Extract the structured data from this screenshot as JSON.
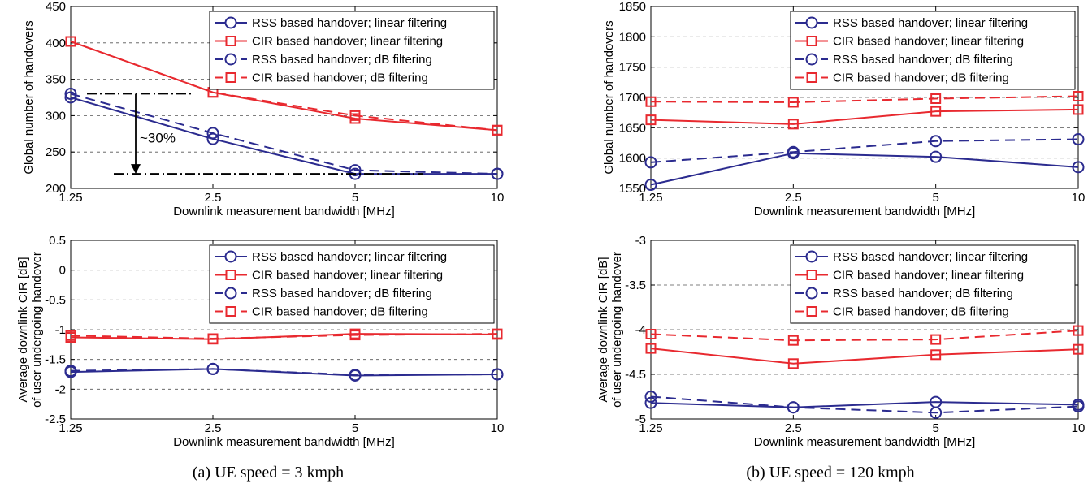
{
  "captions": {
    "left": "(a) UE speed = 3 kmph",
    "right": "(b) UE speed = 120 kmph"
  },
  "annotation": {
    "text": "~30%"
  },
  "colors": {
    "rss": "#2b2b8f",
    "cir": "#e8292f"
  },
  "chart_data": [
    {
      "type": "line",
      "xlabel": "Downlink measurement bandwidth [MHz]",
      "ylabel": "Global number of handovers",
      "categories": [
        "1.25",
        "2.5",
        "5",
        "10"
      ],
      "ylim": [
        200,
        450
      ],
      "yticks": [
        200,
        250,
        300,
        350,
        400,
        450
      ],
      "legend_position": "top-right",
      "grid": "horizontal dashed",
      "series": [
        {
          "name": "RSS based handover; linear filtering",
          "values": [
            325,
            268,
            220,
            220
          ]
        },
        {
          "name": "CIR based handover; linear filtering",
          "values": [
            402,
            332,
            296,
            280
          ]
        },
        {
          "name": "RSS based handover; dB filtering",
          "values": [
            330,
            276,
            225,
            220
          ]
        },
        {
          "name": "CIR based handover; dB filtering",
          "values": [
            402,
            332,
            300,
            280
          ]
        }
      ]
    },
    {
      "type": "line",
      "xlabel": "Downlink measurement bandwidth [MHz]",
      "ylabel": "Global number of handovers",
      "categories": [
        "1.25",
        "2.5",
        "5",
        "10"
      ],
      "ylim": [
        1550,
        1850
      ],
      "yticks": [
        1550,
        1600,
        1650,
        1700,
        1750,
        1800,
        1850
      ],
      "legend_position": "top-right",
      "grid": "horizontal dashed",
      "series": [
        {
          "name": "RSS based handover; linear filtering",
          "values": [
            1556,
            1608,
            1602,
            1585
          ]
        },
        {
          "name": "CIR based handover; linear filtering",
          "values": [
            1663,
            1656,
            1677,
            1680
          ]
        },
        {
          "name": "RSS based handover; dB filtering",
          "values": [
            1593,
            1610,
            1628,
            1631
          ]
        },
        {
          "name": "CIR based handover; dB filtering",
          "values": [
            1693,
            1692,
            1698,
            1702
          ]
        }
      ]
    },
    {
      "type": "line",
      "xlabel": "Downlink measurement bandwidth [MHz]",
      "ylabel": "Average downlink CIR [dB]",
      "ylabel2": "of user undergoing handover",
      "categories": [
        "1.25",
        "2.5",
        "5",
        "10"
      ],
      "ylim": [
        -2.5,
        0.5
      ],
      "yticks": [
        -2.5,
        -2,
        -1.5,
        -1,
        -0.5,
        0,
        0.5
      ],
      "legend_position": "top-right",
      "grid": "horizontal dashed",
      "series": [
        {
          "name": "RSS based handover; linear filtering",
          "values": [
            -1.71,
            -1.66,
            -1.77,
            -1.75
          ]
        },
        {
          "name": "CIR based handover; linear filtering",
          "values": [
            -1.13,
            -1.16,
            -1.07,
            -1.08
          ]
        },
        {
          "name": "RSS based handover; dB filtering",
          "values": [
            -1.69,
            -1.66,
            -1.76,
            -1.75
          ]
        },
        {
          "name": "CIR based handover; dB filtering",
          "values": [
            -1.1,
            -1.15,
            -1.09,
            -1.07
          ]
        }
      ]
    },
    {
      "type": "line",
      "xlabel": "Downlink measurement bandwidth [MHz]",
      "ylabel": "Average downlink CIR [dB]",
      "ylabel2": "of user undergoing handover",
      "categories": [
        "1.25",
        "2.5",
        "5",
        "10"
      ],
      "ylim": [
        -5,
        -3
      ],
      "yticks": [
        -5,
        -4.5,
        -4,
        -3.5,
        -3
      ],
      "legend_position": "top-right",
      "grid": "horizontal dashed",
      "series": [
        {
          "name": "RSS based handover; linear filtering",
          "values": [
            -4.82,
            -4.87,
            -4.81,
            -4.84
          ]
        },
        {
          "name": "CIR based handover; linear filtering",
          "values": [
            -4.21,
            -4.38,
            -4.28,
            -4.22
          ]
        },
        {
          "name": "RSS based handover; dB filtering",
          "values": [
            -4.75,
            -4.87,
            -4.93,
            -4.86
          ]
        },
        {
          "name": "CIR based handover; dB filtering",
          "values": [
            -4.05,
            -4.12,
            -4.11,
            -4.01
          ]
        }
      ]
    }
  ]
}
